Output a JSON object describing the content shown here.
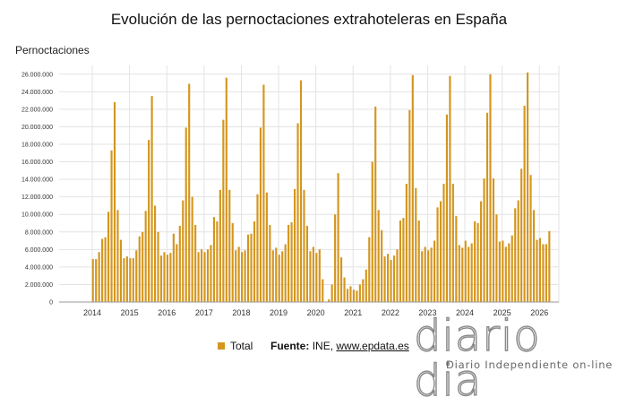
{
  "title": "Evolución de las pernoctaciones extrahoteleras en España",
  "y_axis_title": "Pernoctaciones",
  "legend": {
    "label": "Total"
  },
  "source": {
    "prefix": "Fuente:",
    "org": "INE,",
    "link": "www.epdata.es"
  },
  "brand": {
    "name": "diario dia",
    "tagline": "Diario Independiente on-line"
  },
  "colors": {
    "bar": "#d4961e",
    "grid": "#e3e3e3",
    "plot_bg": "#ffffff"
  },
  "chart_data": {
    "type": "bar",
    "title": "Evolución de las pernoctaciones extrahoteleras en España",
    "ylabel": "Pernoctaciones",
    "ylim": [
      0,
      27000000
    ],
    "yticks": [
      0,
      2000000,
      4000000,
      6000000,
      8000000,
      10000000,
      12000000,
      14000000,
      16000000,
      18000000,
      20000000,
      22000000,
      24000000,
      26000000
    ],
    "ytick_labels": [
      "0",
      "2.000.000",
      "4.000.000",
      "6.000.000",
      "8.000.000",
      "10.000.000",
      "12.000.000",
      "14.000.000",
      "16.000.000",
      "18.000.000",
      "20.000.000",
      "22.000.000",
      "24.000.000",
      "26.000.000"
    ],
    "xtick_labels": [
      "2014",
      "2015",
      "2016",
      "2017",
      "2018",
      "2019",
      "2020",
      "2021",
      "2022",
      "2023",
      "2024",
      "2025",
      "2026"
    ],
    "x_start": "2014-01",
    "grid": true,
    "legend_position": "bottom",
    "series": [
      {
        "name": "Total",
        "values": [
          4900000,
          4900000,
          5700000,
          7200000,
          7400000,
          10300000,
          17300000,
          22800000,
          10500000,
          7100000,
          5000000,
          5200000,
          5000000,
          5000000,
          5900000,
          7500000,
          8000000,
          10400000,
          18500000,
          23500000,
          11000000,
          8000000,
          5300000,
          5700000,
          5400000,
          5600000,
          7800000,
          6600000,
          8700000,
          11600000,
          19900000,
          24900000,
          12000000,
          8800000,
          5700000,
          6000000,
          5700000,
          6000000,
          6500000,
          9700000,
          9200000,
          12800000,
          20800000,
          25600000,
          12800000,
          9000000,
          5900000,
          6300000,
          5700000,
          5900000,
          7700000,
          7800000,
          9200000,
          12300000,
          19900000,
          24800000,
          12500000,
          8800000,
          5900000,
          6200000,
          5400000,
          5800000,
          6600000,
          8800000,
          9100000,
          12900000,
          20400000,
          25300000,
          12800000,
          8700000,
          5800000,
          6300000,
          5600000,
          6000000,
          2600000,
          0,
          300000,
          2000000,
          10000000,
          14700000,
          5100000,
          2800000,
          1500000,
          1800000,
          1400000,
          1300000,
          2000000,
          2600000,
          3700000,
          7400000,
          16000000,
          22300000,
          10500000,
          8200000,
          5200000,
          5500000,
          4800000,
          5300000,
          6000000,
          9300000,
          9600000,
          13500000,
          21900000,
          25900000,
          13000000,
          9300000,
          5800000,
          6300000,
          5900000,
          6200000,
          7000000,
          10800000,
          11500000,
          13500000,
          21400000,
          25800000,
          13500000,
          9800000,
          6500000,
          6200000,
          7000000,
          6300000,
          6700000,
          9200000,
          9000000,
          11500000,
          14100000,
          21600000,
          26000000,
          14100000,
          10000000,
          6900000,
          7000000,
          6300000,
          6700000,
          7600000,
          10700000,
          11600000,
          15200000,
          22400000,
          26200000,
          14500000,
          10500000,
          7100000,
          7300000,
          6600000,
          6600000,
          8100000
        ]
      }
    ]
  }
}
